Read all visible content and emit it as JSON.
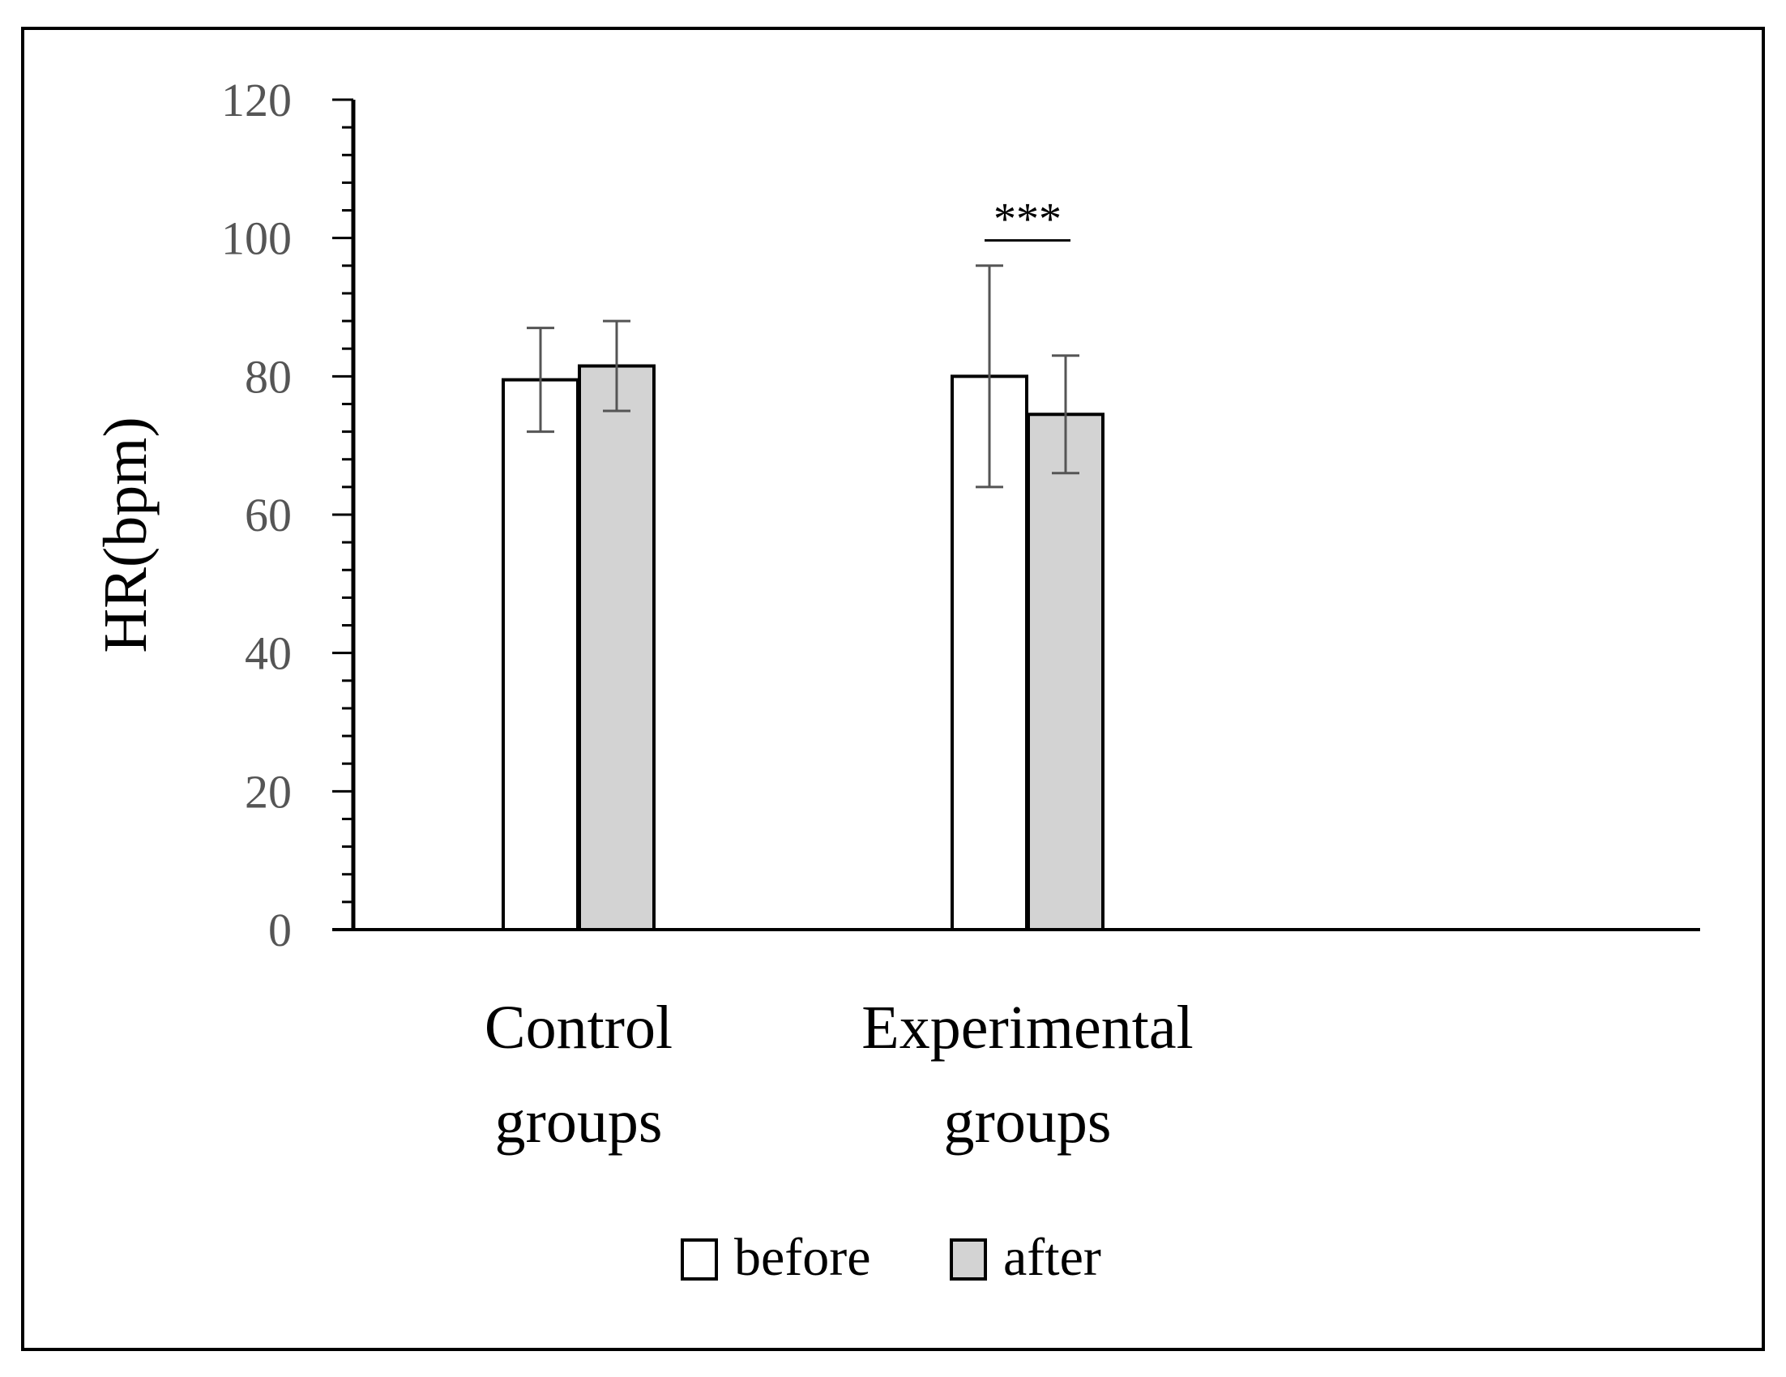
{
  "chart_data": {
    "type": "bar",
    "title": "",
    "xlabel": "",
    "ylabel": "HR(bpm)",
    "ylim": [
      0,
      120
    ],
    "y_ticks": [
      "0",
      "20",
      "40",
      "60",
      "80",
      "100",
      "120"
    ],
    "minor_tick_step": 4,
    "categories": [
      {
        "line1": "Control",
        "line2": "groups"
      },
      {
        "line1": "Experimental",
        "line2": "groups"
      }
    ],
    "series": [
      {
        "name": "before",
        "color": "#ffffff",
        "values": [
          79.5,
          80
        ],
        "error": [
          7.5,
          16
        ]
      },
      {
        "name": "after",
        "color": "#d3d3d3",
        "values": [
          81.5,
          74.5
        ],
        "error": [
          6.5,
          8.5
        ]
      }
    ],
    "annotations": [
      {
        "text": "***",
        "category_index": 1,
        "y": 100
      }
    ],
    "legend_position": "bottom-center",
    "grid": false
  }
}
